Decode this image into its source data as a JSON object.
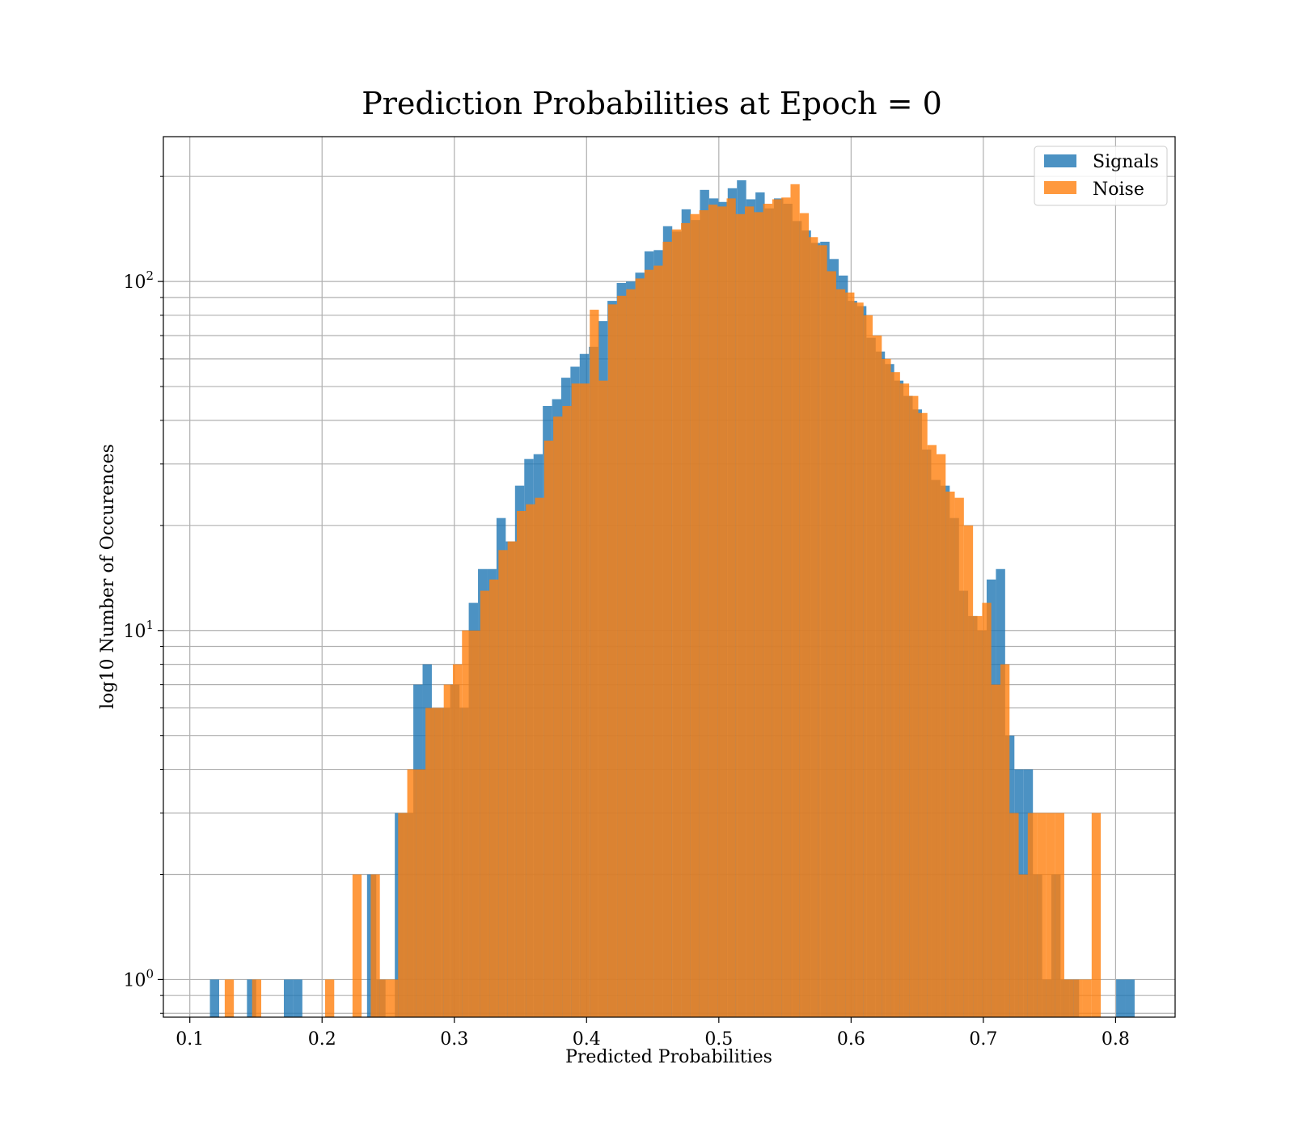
{
  "chart_data": {
    "type": "bar",
    "title": "Prediction Probabilities at Epoch = 0",
    "xlabel": "Predicted Probabilities",
    "ylabel": "log10 Number of Occurences",
    "xlim": [
      0.08,
      0.845
    ],
    "ylim": [
      0.78,
      260
    ],
    "yscale": "log",
    "grid": true,
    "legend_position": "top-right",
    "x_ticks": [
      {
        "value": 0.1,
        "label": "0.1"
      },
      {
        "value": 0.2,
        "label": "0.2"
      },
      {
        "value": 0.3,
        "label": "0.3"
      },
      {
        "value": 0.4,
        "label": "0.4"
      },
      {
        "value": 0.5,
        "label": "0.5"
      },
      {
        "value": 0.6,
        "label": "0.6"
      },
      {
        "value": 0.7,
        "label": "0.7"
      },
      {
        "value": 0.8,
        "label": "0.8"
      }
    ],
    "y_ticks": [
      {
        "value": 1,
        "base": "10",
        "exp": "0"
      },
      {
        "value": 10,
        "base": "10",
        "exp": "1"
      },
      {
        "value": 100,
        "base": "10",
        "exp": "2"
      }
    ],
    "series": [
      {
        "name": "Signals",
        "color": "#1f77b4",
        "opacity": 0.8,
        "bin_width": 0.00699,
        "bins": [
          [
            0.1152,
            1
          ],
          [
            0.1432,
            1
          ],
          [
            0.1711,
            1
          ],
          [
            0.1781,
            1
          ],
          [
            0.234,
            2
          ],
          [
            0.241,
            1
          ],
          [
            0.255,
            3
          ],
          [
            0.262,
            3
          ],
          [
            0.269,
            7
          ],
          [
            0.276,
            8
          ],
          [
            0.2829,
            6
          ],
          [
            0.2899,
            6
          ],
          [
            0.2969,
            7
          ],
          [
            0.3039,
            6
          ],
          [
            0.3109,
            12
          ],
          [
            0.3179,
            15
          ],
          [
            0.3249,
            15
          ],
          [
            0.3319,
            21
          ],
          [
            0.3389,
            18
          ],
          [
            0.3459,
            26
          ],
          [
            0.3529,
            31
          ],
          [
            0.3599,
            32
          ],
          [
            0.3669,
            44
          ],
          [
            0.3739,
            46
          ],
          [
            0.3808,
            53
          ],
          [
            0.3878,
            57
          ],
          [
            0.3948,
            62
          ],
          [
            0.4018,
            65
          ],
          [
            0.4088,
            77
          ],
          [
            0.4158,
            88
          ],
          [
            0.4228,
            99
          ],
          [
            0.4298,
            100
          ],
          [
            0.4368,
            106
          ],
          [
            0.4438,
            122
          ],
          [
            0.4508,
            123
          ],
          [
            0.4578,
            144
          ],
          [
            0.4648,
            139
          ],
          [
            0.4718,
            161
          ],
          [
            0.4788,
            150
          ],
          [
            0.4857,
            183
          ],
          [
            0.4927,
            173
          ],
          [
            0.4997,
            169
          ],
          [
            0.5067,
            185
          ],
          [
            0.5137,
            195
          ],
          [
            0.5207,
            172
          ],
          [
            0.5277,
            180
          ],
          [
            0.5347,
            162
          ],
          [
            0.5417,
            173
          ],
          [
            0.5487,
            167
          ],
          [
            0.5557,
            149
          ],
          [
            0.5627,
            140
          ],
          [
            0.5697,
            129
          ],
          [
            0.5767,
            130
          ],
          [
            0.5836,
            116
          ],
          [
            0.5906,
            104
          ],
          [
            0.5976,
            88
          ],
          [
            0.6046,
            85
          ],
          [
            0.6116,
            69
          ],
          [
            0.6186,
            63
          ],
          [
            0.6256,
            58
          ],
          [
            0.6326,
            52
          ],
          [
            0.6396,
            47
          ],
          [
            0.6466,
            43
          ],
          [
            0.6536,
            33
          ],
          [
            0.6606,
            27
          ],
          [
            0.6676,
            26
          ],
          [
            0.6746,
            21
          ],
          [
            0.6815,
            13
          ],
          [
            0.6885,
            11
          ],
          [
            0.6955,
            10
          ],
          [
            0.7025,
            14
          ],
          [
            0.7095,
            15
          ],
          [
            0.7165,
            5
          ],
          [
            0.7235,
            4
          ],
          [
            0.7305,
            4
          ],
          [
            0.7375,
            2
          ],
          [
            0.7445,
            1
          ],
          [
            0.7514,
            2
          ],
          [
            0.7584,
            1
          ],
          [
            0.7654,
            1
          ],
          [
            0.8004,
            1
          ],
          [
            0.8074,
            1
          ]
        ]
      },
      {
        "name": "Noise",
        "color": "#ff7f0e",
        "opacity": 0.8,
        "bin_width": 0.0069,
        "bins": [
          [
            0.1264,
            1
          ],
          [
            0.1471,
            1
          ],
          [
            0.2023,
            1
          ],
          [
            0.223,
            2
          ],
          [
            0.2368,
            2
          ],
          [
            0.2437,
            1
          ],
          [
            0.2506,
            1
          ],
          [
            0.2575,
            3
          ],
          [
            0.2644,
            4
          ],
          [
            0.2713,
            4
          ],
          [
            0.2782,
            6
          ],
          [
            0.2851,
            6
          ],
          [
            0.292,
            7
          ],
          [
            0.2989,
            8
          ],
          [
            0.3058,
            10
          ],
          [
            0.3127,
            10
          ],
          [
            0.3196,
            13
          ],
          [
            0.3265,
            14
          ],
          [
            0.3334,
            17
          ],
          [
            0.3403,
            18
          ],
          [
            0.3472,
            22
          ],
          [
            0.3541,
            23
          ],
          [
            0.361,
            24
          ],
          [
            0.3679,
            35
          ],
          [
            0.3748,
            41
          ],
          [
            0.3817,
            44
          ],
          [
            0.3886,
            51
          ],
          [
            0.3955,
            51
          ],
          [
            0.4024,
            83
          ],
          [
            0.4093,
            52
          ],
          [
            0.4162,
            86
          ],
          [
            0.4231,
            91
          ],
          [
            0.43,
            95
          ],
          [
            0.4369,
            102
          ],
          [
            0.4438,
            108
          ],
          [
            0.4507,
            111
          ],
          [
            0.4576,
            130
          ],
          [
            0.4645,
            141
          ],
          [
            0.4714,
            147
          ],
          [
            0.4783,
            156
          ],
          [
            0.4852,
            160
          ],
          [
            0.4921,
            166
          ],
          [
            0.499,
            164
          ],
          [
            0.5059,
            173
          ],
          [
            0.5128,
            156
          ],
          [
            0.5197,
            164
          ],
          [
            0.5266,
            158
          ],
          [
            0.5335,
            167
          ],
          [
            0.5404,
            172
          ],
          [
            0.5473,
            174
          ],
          [
            0.5542,
            190
          ],
          [
            0.5611,
            157
          ],
          [
            0.568,
            134
          ],
          [
            0.5749,
            127
          ],
          [
            0.5818,
            107
          ],
          [
            0.5887,
            95
          ],
          [
            0.5956,
            93
          ],
          [
            0.6025,
            87
          ],
          [
            0.6094,
            80
          ],
          [
            0.6163,
            70
          ],
          [
            0.6232,
            60
          ],
          [
            0.6301,
            55
          ],
          [
            0.637,
            51
          ],
          [
            0.6439,
            47
          ],
          [
            0.6508,
            42
          ],
          [
            0.6577,
            34
          ],
          [
            0.6646,
            32
          ],
          [
            0.6715,
            25
          ],
          [
            0.6784,
            24
          ],
          [
            0.6853,
            20
          ],
          [
            0.6922,
            11
          ],
          [
            0.6991,
            12
          ],
          [
            0.706,
            7
          ],
          [
            0.7129,
            8
          ],
          [
            0.7198,
            3
          ],
          [
            0.7267,
            2
          ],
          [
            0.7336,
            3
          ],
          [
            0.7405,
            3
          ],
          [
            0.7474,
            3
          ],
          [
            0.7543,
            3
          ],
          [
            0.7612,
            1
          ],
          [
            0.7681,
            1
          ],
          [
            0.775,
            1
          ],
          [
            0.7819,
            3
          ]
        ]
      }
    ]
  }
}
